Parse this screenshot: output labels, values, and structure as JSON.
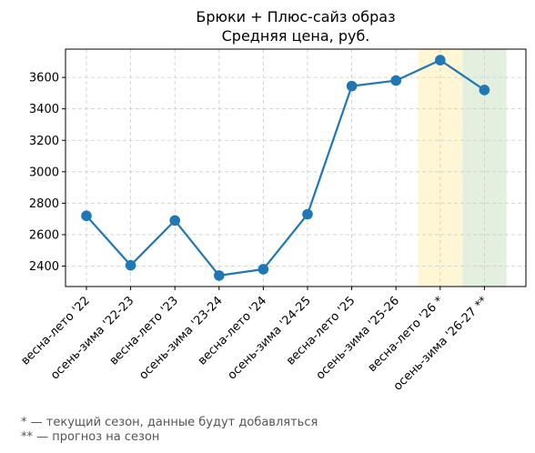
{
  "chart_data": {
    "type": "line",
    "title": "Брюки + Плюс-сайз образ",
    "subtitle": "Средняя цена, руб.",
    "categories": [
      "весна-лето '22",
      "осень-зима '22-23",
      "весна-лето '23",
      "осень-зима '23-24",
      "весна-лето '24",
      "осень-зима '24-25",
      "весна-лето '25",
      "осень-зима '25-26",
      "весна-лето '26 *",
      "осень-зима '26-27 **"
    ],
    "series": [
      {
        "values": [
          2720,
          2405,
          2690,
          2340,
          2380,
          2730,
          3545,
          3580,
          3710,
          3520
        ],
        "color": "#1f77b4"
      }
    ],
    "ylim": [
      2270,
      3780
    ],
    "yticks": [
      2400,
      2600,
      2800,
      3000,
      3200,
      3400,
      3600
    ],
    "grid": true,
    "highlights": [
      {
        "category": "весна-лето '26 *",
        "color": "#fff6d5"
      },
      {
        "category": "осень-зима '26-27 **",
        "color": "#e4f0df"
      }
    ]
  },
  "footnotes": [
    "* — текущий сезон, данные будут добавляться",
    "** — прогноз на сезон"
  ]
}
